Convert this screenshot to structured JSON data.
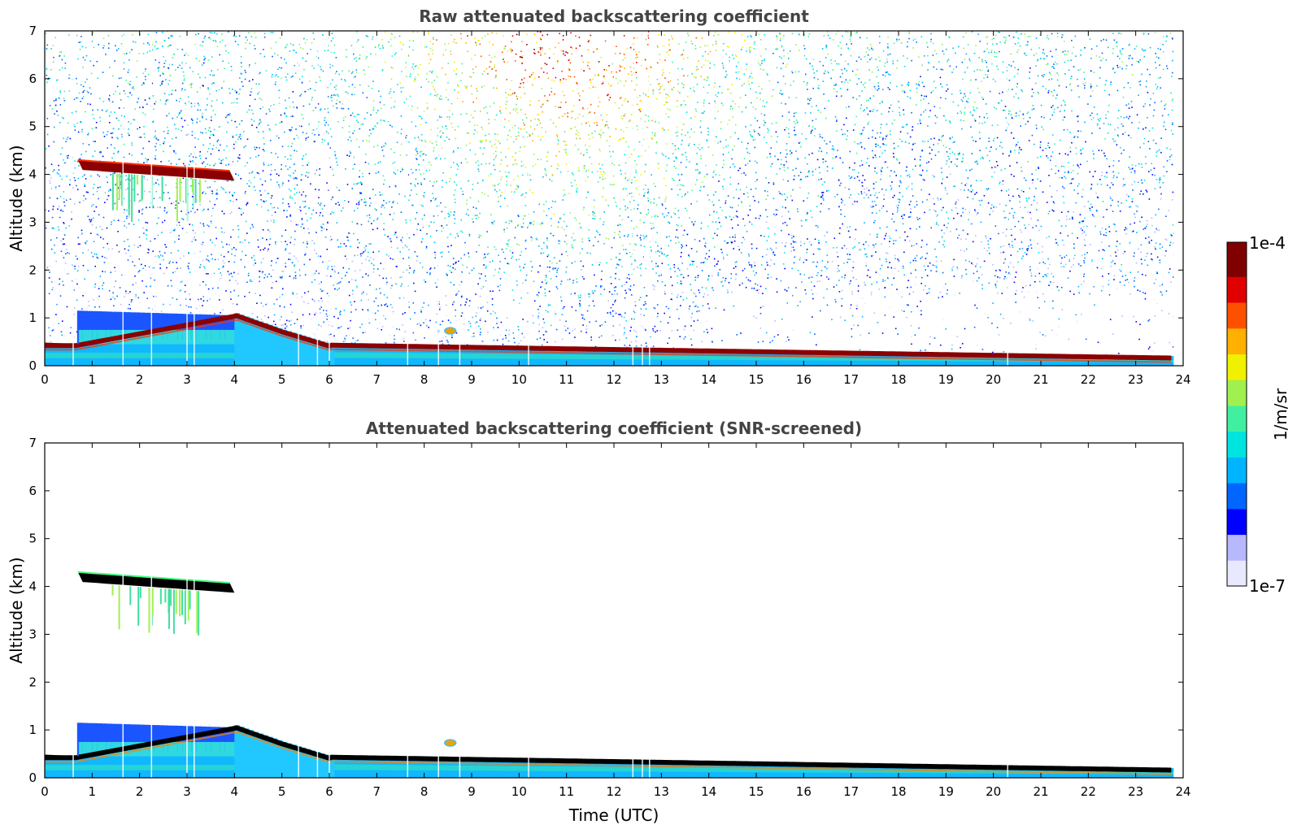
{
  "chart_data": [
    {
      "type": "heatmap",
      "title": "Raw attenuated backscattering coefficient",
      "xlabel": "",
      "ylabel": "Altitude (km)",
      "xlim": [
        0,
        24
      ],
      "ylim": [
        0,
        7
      ],
      "x_ticks": [
        "0",
        "1",
        "2",
        "3",
        "4",
        "5",
        "6",
        "7",
        "8",
        "9",
        "10",
        "11",
        "12",
        "13",
        "14",
        "15",
        "16",
        "17",
        "18",
        "19",
        "20",
        "21",
        "22",
        "23",
        "24"
      ],
      "y_ticks": [
        "0",
        "1",
        "2",
        "3",
        "4",
        "5",
        "6",
        "7"
      ],
      "layers": [
        {
          "feature": "boundary layer top",
          "time_start": 0,
          "time_end": 23.8,
          "altitude_start_km": 0.45,
          "altitude_end_km": 0.2
        },
        {
          "feature": "mid-level cloud",
          "time_start": 0.7,
          "time_end": 4.0,
          "altitude_km": 4.15
        },
        {
          "feature": "residual layer",
          "time_start": 0.7,
          "time_end": 4.0,
          "altitude_top_km": 1.2
        },
        {
          "feature": "small aerosol patch",
          "time": 8.5,
          "altitude_km": 0.73
        }
      ],
      "screened": false
    },
    {
      "type": "heatmap",
      "title": "Attenuated backscattering coefficient (SNR-screened)",
      "xlabel": "Time (UTC)",
      "ylabel": "Altitude (km)",
      "xlim": [
        0,
        24
      ],
      "ylim": [
        0,
        7
      ],
      "x_ticks": [
        "0",
        "1",
        "2",
        "3",
        "4",
        "5",
        "6",
        "7",
        "8",
        "9",
        "10",
        "11",
        "12",
        "13",
        "14",
        "15",
        "16",
        "17",
        "18",
        "19",
        "20",
        "21",
        "22",
        "23",
        "24"
      ],
      "y_ticks": [
        "0",
        "1",
        "2",
        "3",
        "4",
        "5",
        "6",
        "7"
      ],
      "screened": true
    }
  ],
  "colorbar": {
    "label": "1/m/sr",
    "max_label": "1e-4",
    "min_label": "1e-7",
    "colormap": [
      "#e8e8ff",
      "#b8b8ff",
      "#0000ff",
      "#0066ff",
      "#00b4ff",
      "#00e4e0",
      "#40f0a0",
      "#a0f050",
      "#f0f000",
      "#ffb000",
      "#ff5000",
      "#e00000",
      "#800000"
    ]
  }
}
